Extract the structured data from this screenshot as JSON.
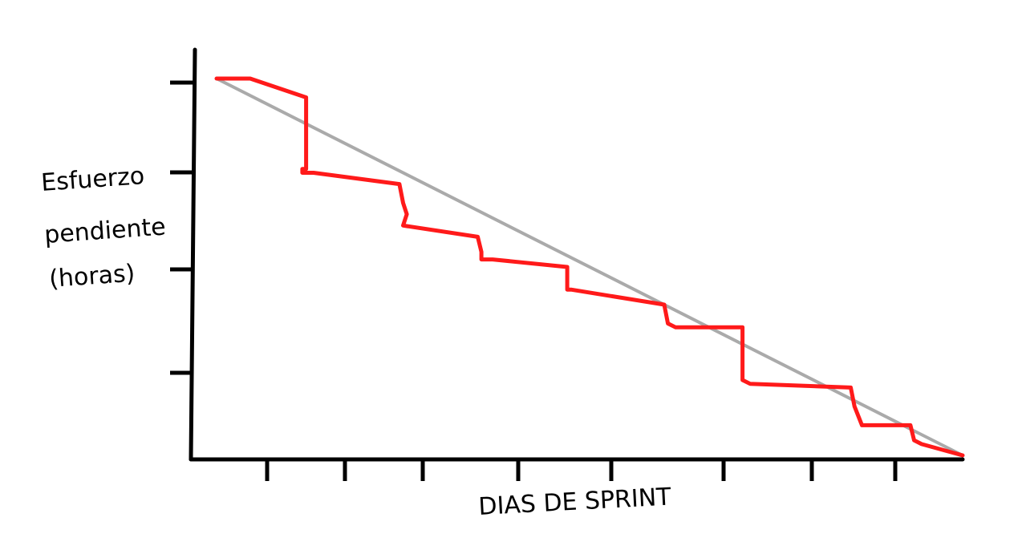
{
  "chart_data": {
    "type": "line",
    "title": "",
    "xlabel": "DIAS DE SPRINT",
    "ylabel_lines": [
      "Esfuerzo",
      "pendiente",
      "(horas)"
    ],
    "x_ticks": 9,
    "y_ticks": 4,
    "xlim": [
      0,
      10
    ],
    "ylim": [
      0,
      100
    ],
    "series": [
      {
        "color": "#aaaaaa",
        "style": "ideal",
        "x": [
          0,
          10
        ],
        "y": [
          100,
          0
        ]
      },
      {
        "color": "#ff1a1a",
        "style": "actual",
        "x": [
          0,
          0.45,
          1.2,
          1.2,
          1.15,
          1.15,
          1.3,
          2.45,
          2.5,
          2.55,
          2.5,
          3.5,
          3.55,
          3.55,
          3.7,
          4.7,
          4.7,
          4.75,
          6.0,
          6.05,
          6.15,
          7.05,
          7.05,
          7.15,
          8.5,
          8.55,
          8.65,
          9.3,
          9.35,
          9.45,
          10
        ],
        "y": [
          100,
          100,
          95,
          76,
          76,
          75,
          75,
          72,
          67,
          64,
          61,
          58,
          54,
          52,
          52,
          50,
          44,
          44,
          40,
          35,
          34,
          34,
          20,
          19,
          18,
          13,
          8,
          8,
          4,
          3,
          0
        ]
      }
    ],
    "grid": false,
    "legend": "none"
  }
}
